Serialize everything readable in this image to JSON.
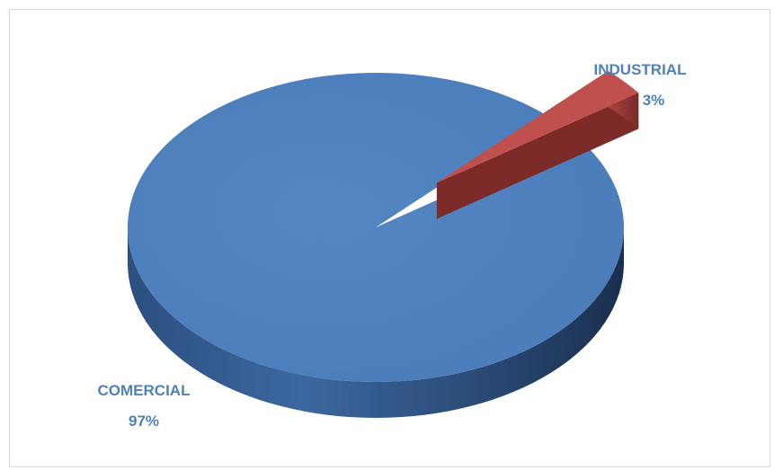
{
  "chart_data": {
    "type": "pie",
    "title": "",
    "slices": [
      {
        "category": "COMERCIAL",
        "value": 97,
        "pct_label": "97%",
        "color": "#4f81bd"
      },
      {
        "category": "INDUSTRIAL",
        "value": 3,
        "pct_label": "3%",
        "color": "#c0504d"
      }
    ],
    "style": "3d-exploded",
    "label_color": "#4f81bd"
  }
}
